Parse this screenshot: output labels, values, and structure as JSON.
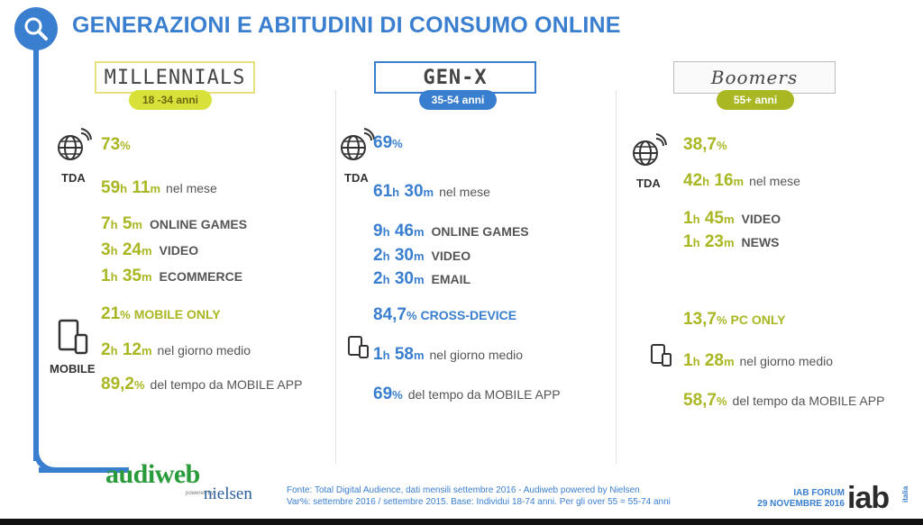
{
  "title": "GENERAZIONI E ABITUDINI DI CONSUMO ONLINE",
  "icons": {
    "header": "search-icon",
    "tda": "globe-wifi-icon",
    "mobile": "mobile-devices-icon"
  },
  "colors": {
    "blue": "#3a7fcf",
    "olive": "#a9b722",
    "green_logo": "#2a9b3a"
  },
  "columns": {
    "millennials": {
      "name": "MILLENNIALS",
      "age": "18 -34 anni",
      "tda_label": "TDA",
      "mobile_label": "MOBILE",
      "tda_pct": {
        "n": "73",
        "u": "%"
      },
      "monthly": {
        "h": "59",
        "hu": "h",
        "m": "11",
        "mu": "m",
        "txt": "nel mese"
      },
      "activities": [
        {
          "h": "7",
          "hu": "h",
          "m": "5",
          "mu": "m",
          "label": "ONLINE GAMES"
        },
        {
          "h": "3",
          "hu": "h",
          "m": "24",
          "mu": "m",
          "label": "VIDEO"
        },
        {
          "h": "1",
          "hu": "h",
          "m": "35",
          "mu": "m",
          "label": "ECOMMERCE"
        }
      ],
      "device": {
        "n": "21",
        "u": "%",
        "label": "MOBILE ONLY"
      },
      "daily": {
        "h": "2",
        "hu": "h",
        "m": "12",
        "mu": "m",
        "txt": "nel giorno medio"
      },
      "app": {
        "n": "89,2",
        "u": "%",
        "txt": "del tempo da MOBILE APP"
      }
    },
    "genx": {
      "name": "GEN-X",
      "age": "35-54 anni",
      "tda_label": "TDA",
      "tda_pct": {
        "n": "69",
        "u": "%"
      },
      "monthly": {
        "h": "61",
        "hu": "h",
        "m": "30",
        "mu": "m",
        "txt": "nel mese"
      },
      "activities": [
        {
          "h": "9",
          "hu": "h",
          "m": "46",
          "mu": "m",
          "label": "ONLINE GAMES"
        },
        {
          "h": "2",
          "hu": "h",
          "m": "30",
          "mu": "m",
          "label": "VIDEO"
        },
        {
          "h": "2",
          "hu": "h",
          "m": "30",
          "mu": "m",
          "label": "EMAIL"
        }
      ],
      "device": {
        "n": "84,7",
        "u": "%",
        "label": "CROSS-DEVICE"
      },
      "daily": {
        "h": "1",
        "hu": "h",
        "m": "58",
        "mu": "m",
        "txt": "nel giorno medio"
      },
      "app": {
        "n": "69",
        "u": "%",
        "txt": "del tempo da MOBILE APP"
      }
    },
    "boomers": {
      "name": "Boomers",
      "age": "55+ anni",
      "tda_label": "TDA",
      "tda_pct": {
        "n": "38,7",
        "u": "%"
      },
      "monthly": {
        "h": "42",
        "hu": "h",
        "m": "16",
        "mu": "m",
        "txt": "nel mese"
      },
      "activities": [
        {
          "h": "1",
          "hu": "h",
          "m": "45",
          "mu": "m",
          "label": "VIDEO"
        },
        {
          "h": "1",
          "hu": "h",
          "m": "23",
          "mu": "m",
          "label": "NEWS"
        }
      ],
      "device": {
        "n": "13,7",
        "u": "%",
        "label": "PC ONLY"
      },
      "daily": {
        "h": "1",
        "hu": "h",
        "m": "28",
        "mu": "m",
        "txt": "nel giorno medio"
      },
      "app": {
        "n": "58,7",
        "u": "%",
        "txt": "del tempo da MOBILE APP"
      }
    }
  },
  "footer": {
    "source_line1": "Fonte: Total Digital Audience, dati mensili settembre 2016 - Audiweb powered by Nielsen",
    "source_line2": "Var%: settembre 2016 / settembre 2015. Base: Individui 18-74 anni. Per gli over 55 = 55-74 anni",
    "forum_line1": "IAB FORUM",
    "forum_line2": "29 NOVEMBRE 2016",
    "iab": "iab",
    "iab_suffix": "italia",
    "audiweb": "audiweb",
    "powered": "powered by",
    "nielsen": "nielsen"
  }
}
